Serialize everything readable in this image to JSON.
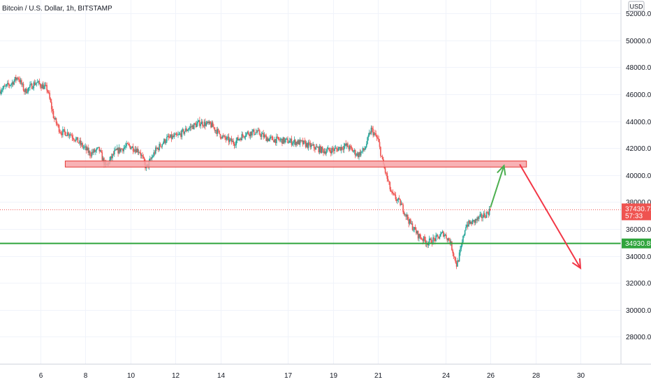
{
  "header": {
    "symbol_title": "Bitcoin / U.S. Dollar, 1h, BITSTAMP",
    "currency": "USD"
  },
  "chart_data": {
    "type": "candlestick",
    "title": "Bitcoin / U.S. Dollar, 1h, BITSTAMP",
    "ylabel": "USD",
    "ylim": [
      26000,
      53000
    ],
    "y_ticks": [
      28000,
      30000,
      32000,
      34000,
      36000,
      38000,
      40000,
      42000,
      44000,
      46000,
      48000,
      50000,
      52000
    ],
    "y_tick_labels": [
      "28000.00",
      "30000.00",
      "32000.00",
      "34000.00",
      "36000.00",
      "38000.00",
      "40000.00",
      "42000.00",
      "44000.00",
      "46000.00",
      "48000.00",
      "50000.00",
      "52000.00"
    ],
    "xlim": [
      4.2,
      31.8
    ],
    "x_ticks": [
      6,
      8,
      10,
      12,
      14,
      17,
      19,
      21,
      24,
      26,
      28,
      30
    ],
    "x_tick_labels": [
      "6",
      "8",
      "10",
      "12",
      "14",
      "17",
      "19",
      "21",
      "24",
      "26",
      "28",
      "30"
    ],
    "grid": true,
    "price_path": [
      [
        4.2,
        46300
      ],
      [
        4.7,
        46800
      ],
      [
        5.0,
        47300
      ],
      [
        5.3,
        46200
      ],
      [
        5.8,
        46900
      ],
      [
        6.3,
        46400
      ],
      [
        6.6,
        44200
      ],
      [
        6.9,
        43200
      ],
      [
        7.3,
        43100
      ],
      [
        7.6,
        42600
      ],
      [
        8.2,
        41600
      ],
      [
        8.6,
        41900
      ],
      [
        8.9,
        40600
      ],
      [
        9.3,
        41700
      ],
      [
        9.9,
        42200
      ],
      [
        10.4,
        41800
      ],
      [
        10.7,
        40500
      ],
      [
        11.1,
        41800
      ],
      [
        11.6,
        42700
      ],
      [
        12.1,
        42900
      ],
      [
        12.6,
        43500
      ],
      [
        13.1,
        43900
      ],
      [
        13.6,
        43700
      ],
      [
        14.1,
        42800
      ],
      [
        14.6,
        42400
      ],
      [
        15.1,
        43100
      ],
      [
        15.6,
        43200
      ],
      [
        16.1,
        42700
      ],
      [
        16.6,
        42600
      ],
      [
        17.1,
        42500
      ],
      [
        17.6,
        42400
      ],
      [
        18.1,
        42100
      ],
      [
        18.6,
        41800
      ],
      [
        19.1,
        41900
      ],
      [
        19.6,
        42200
      ],
      [
        20.1,
        41500
      ],
      [
        20.4,
        41900
      ],
      [
        20.7,
        43400
      ],
      [
        21.0,
        42600
      ],
      [
        21.2,
        41000
      ],
      [
        21.6,
        38600
      ],
      [
        22.0,
        37900
      ],
      [
        22.4,
        36500
      ],
      [
        22.8,
        35500
      ],
      [
        23.2,
        35000
      ],
      [
        23.6,
        35300
      ],
      [
        23.9,
        35700
      ],
      [
        24.2,
        35100
      ],
      [
        24.5,
        33300
      ],
      [
        24.7,
        34600
      ],
      [
        24.9,
        36300
      ],
      [
        25.2,
        36500
      ],
      [
        25.5,
        36800
      ],
      [
        25.8,
        37100
      ],
      [
        26.0,
        37430.73
      ]
    ],
    "resistance_zone": {
      "low": 40600,
      "high": 41050,
      "x_start": 7.1,
      "x_end": 27.6,
      "color": "#f7a4a8"
    },
    "support_line": {
      "value": 34930.85,
      "label": "34930.85",
      "color": "#2fa43c"
    },
    "last_price": {
      "value": 37430.73,
      "label": "37430.73",
      "countdown": "57:33",
      "color": "#ef5350"
    },
    "projection_up": {
      "from": [
        26.0,
        37600
      ],
      "to": [
        26.6,
        40700
      ],
      "color": "#4caf50"
    },
    "projection_down": {
      "from": [
        27.3,
        40800
      ],
      "to": [
        30.0,
        33100
      ],
      "color": "#f23645"
    },
    "up_color": "#26a69a",
    "down_color": "#ef5350"
  }
}
